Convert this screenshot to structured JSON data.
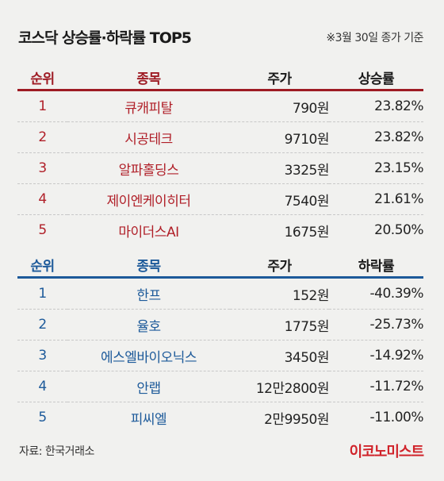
{
  "title": "코스닥 상승률·하락률 TOP5",
  "subtitle": "※3월 30일 종가 기준",
  "gainers": {
    "headers": [
      "순위",
      "종목",
      "주가",
      "상승률"
    ],
    "rows": [
      {
        "rank": "1",
        "name": "큐캐피탈",
        "price": "790원",
        "rate": "23.82%"
      },
      {
        "rank": "2",
        "name": "시공테크",
        "price": "9710원",
        "rate": "23.82%"
      },
      {
        "rank": "3",
        "name": "알파홀딩스",
        "price": "3325원",
        "rate": "23.15%"
      },
      {
        "rank": "4",
        "name": "제이엔케이히터",
        "price": "7540원",
        "rate": "21.61%"
      },
      {
        "rank": "5",
        "name": "마이더스AI",
        "price": "1675원",
        "rate": "20.50%"
      }
    ]
  },
  "losers": {
    "headers": [
      "순위",
      "종목",
      "주가",
      "하락률"
    ],
    "rows": [
      {
        "rank": "1",
        "name": "한프",
        "price": "152원",
        "rate": "-40.39%"
      },
      {
        "rank": "2",
        "name": "율호",
        "price": "1775원",
        "rate": "-25.73%"
      },
      {
        "rank": "3",
        "name": "에스엘바이오닉스",
        "price": "3450원",
        "rate": "-14.92%"
      },
      {
        "rank": "4",
        "name": "안랩",
        "price": "12만2800원",
        "rate": "-11.72%"
      },
      {
        "rank": "5",
        "name": "피씨엘",
        "price": "2만9950원",
        "rate": "-11.00%"
      }
    ]
  },
  "source": "자료: 한국거래소",
  "brand": "이코노미스트",
  "colors": {
    "gain": "#b01f28",
    "loss": "#1d5a9a",
    "brand": "#d0232a"
  }
}
